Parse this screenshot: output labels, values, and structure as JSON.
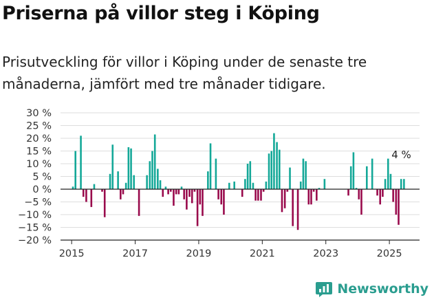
{
  "header": {
    "title": "Priserna på villor steg i Köping",
    "subtitle": "Prisutveckling för villor i Köping under de senaste tre månaderna, jämfört med tre månader tidigare."
  },
  "brand": {
    "name": "Newsworthy"
  },
  "colors": {
    "positive": "#14a898",
    "negative": "#990a4c",
    "grid": "#dddddd",
    "axis": "#222222",
    "brand": "#2a9d8f"
  },
  "chart_data": {
    "type": "bar",
    "x_unit": "year",
    "x_ticks": [
      2015,
      2017,
      2019,
      2021,
      2023,
      2025
    ],
    "ylim": [
      -20,
      30
    ],
    "y_ticks": [
      -20,
      -15,
      -10,
      -5,
      0,
      5,
      10,
      15,
      20,
      25,
      30
    ],
    "y_tick_labels": [
      "−20 %",
      "−15 %",
      "−10 %",
      "−5 %",
      "0 %",
      "5 %",
      "10 %",
      "15 %",
      "20 %",
      "25 %",
      "30 %"
    ],
    "annotation": {
      "text": "4 %",
      "x": 2025.37,
      "y": 4
    },
    "x": [
      2015.04,
      2015.12,
      2015.29,
      2015.37,
      2015.46,
      2015.62,
      2015.71,
      2015.96,
      2016.04,
      2016.21,
      2016.29,
      2016.46,
      2016.54,
      2016.62,
      2016.71,
      2016.79,
      2016.87,
      2016.96,
      2017.12,
      2017.37,
      2017.46,
      2017.54,
      2017.62,
      2017.71,
      2017.79,
      2017.87,
      2017.96,
      2018.04,
      2018.12,
      2018.21,
      2018.29,
      2018.37,
      2018.46,
      2018.54,
      2018.62,
      2018.71,
      2018.79,
      2018.87,
      2018.96,
      2019.04,
      2019.12,
      2019.29,
      2019.37,
      2019.54,
      2019.62,
      2019.71,
      2019.79,
      2019.96,
      2020.12,
      2020.37,
      2020.46,
      2020.54,
      2020.62,
      2020.71,
      2020.79,
      2020.87,
      2020.96,
      2021.04,
      2021.12,
      2021.21,
      2021.29,
      2021.37,
      2021.46,
      2021.54,
      2021.62,
      2021.71,
      2021.79,
      2021.87,
      2021.96,
      2022.12,
      2022.21,
      2022.29,
      2022.37,
      2022.46,
      2022.54,
      2022.62,
      2022.71,
      2022.79,
      2022.96,
      2023.71,
      2023.79,
      2023.87,
      2023.96,
      2024.04,
      2024.12,
      2024.29,
      2024.46,
      2024.62,
      2024.71,
      2024.79,
      2024.87,
      2024.96,
      2025.04,
      2025.12,
      2025.21,
      2025.29,
      2025.37,
      2025.46
    ],
    "values": [
      1,
      15,
      21,
      -3,
      -5,
      -7,
      2,
      -1,
      -11,
      6,
      17.5,
      7,
      -4,
      -2,
      2.5,
      16.5,
      16,
      5.5,
      -10.5,
      5.5,
      11,
      15,
      21.5,
      8,
      3.5,
      -3,
      1,
      -2,
      -1,
      -6.5,
      -2,
      -2,
      1,
      -4,
      -8,
      -3,
      -5.5,
      -1,
      -14.5,
      -6,
      -10.5,
      7,
      18,
      12,
      -4,
      -6,
      -10,
      2.5,
      3,
      -3,
      4,
      10,
      11,
      2.5,
      -4.5,
      -4.5,
      -4.5,
      -1,
      3,
      14,
      15,
      22,
      18.5,
      15.5,
      -9,
      -7.5,
      -1,
      8.5,
      -14.5,
      -16,
      3,
      12,
      11,
      -6,
      -6,
      -1,
      -4.5,
      0.5,
      4,
      -2.5,
      9,
      14.5,
      0.5,
      -4,
      -10,
      9,
      12,
      -2.5,
      -6,
      -3,
      4,
      12,
      6,
      -5,
      -10,
      -14,
      4,
      4
    ]
  }
}
